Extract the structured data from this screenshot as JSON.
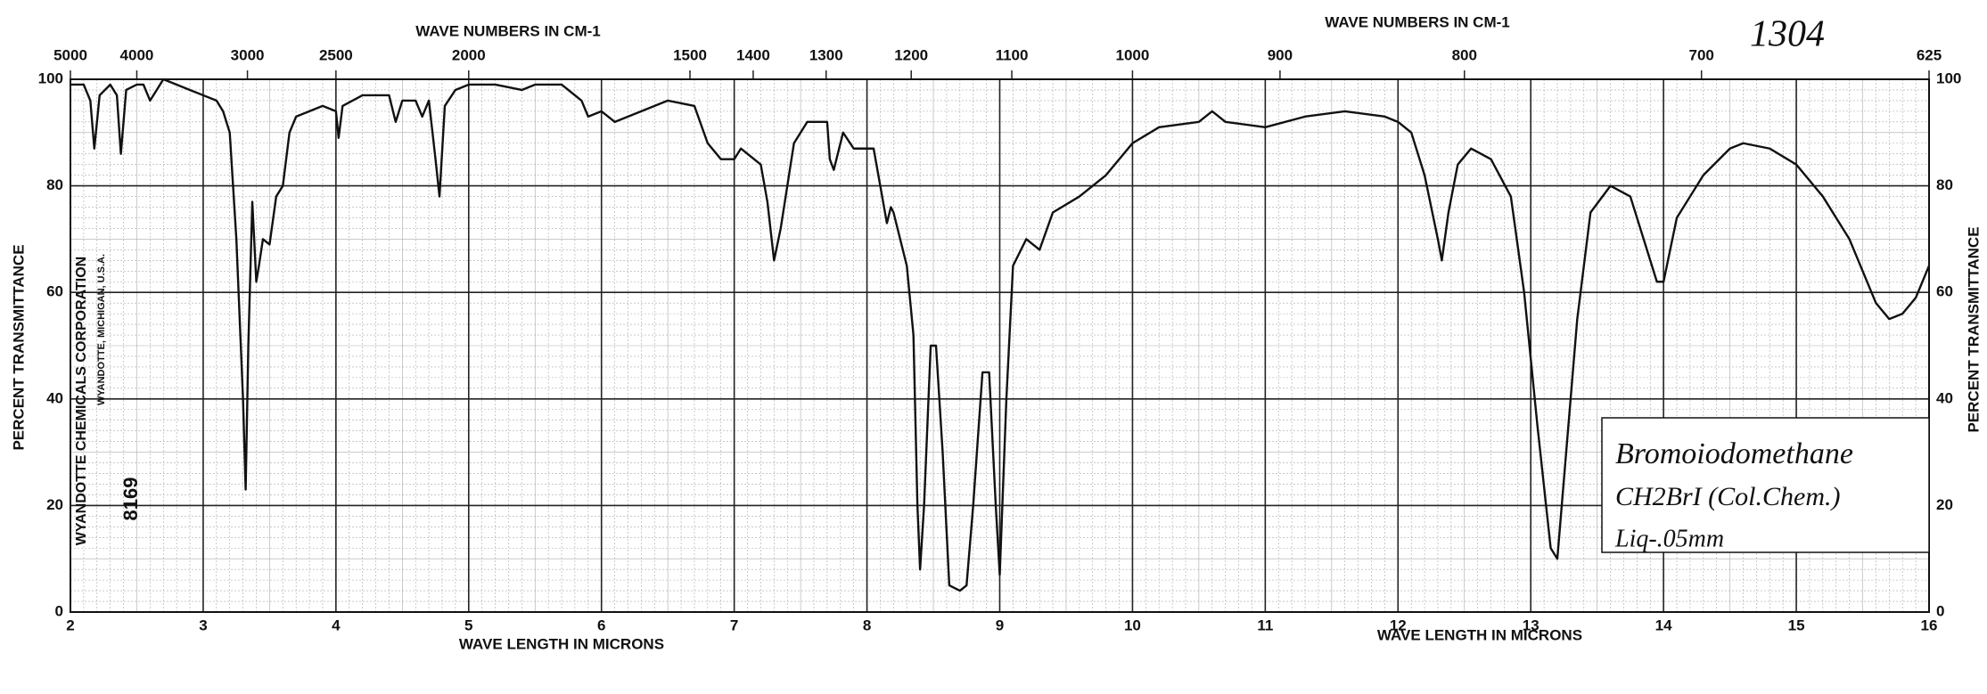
{
  "chart_data": {
    "type": "line",
    "top_label": "1304",
    "x_label": "WAVE LENGTH IN MICRONS",
    "x2_label": "WAVE NUMBERS IN CM-1",
    "y_label": "PERCENT TRANSMITTANCE",
    "annotations": [
      "Bromoiodomethane",
      "CH2BrI (Col.Chem.)",
      "Liq-.05mm",
      "WYANDOTTE CHEMICALS CORPORATION",
      "WYANDOTTE, MICHIGAN, U.S.A.",
      "8169"
    ],
    "xlim": [
      2,
      16
    ],
    "ylim": [
      0,
      100
    ],
    "xticks": [
      2,
      3,
      4,
      5,
      6,
      7,
      8,
      9,
      10,
      11,
      12,
      13,
      14,
      15,
      16
    ],
    "yticks": [
      0,
      20,
      40,
      60,
      80,
      100
    ],
    "x2ticks": [
      5000,
      4000,
      3000,
      2500,
      2000,
      1500,
      1400,
      1300,
      1200,
      1100,
      1000,
      900,
      800,
      700,
      625
    ],
    "grid": true,
    "series": [
      {
        "name": "Bromoiodomethane",
        "color": "#111111",
        "x": [
          2.0,
          2.1,
          2.15,
          2.18,
          2.22,
          2.3,
          2.35,
          2.38,
          2.42,
          2.5,
          2.55,
          2.6,
          2.65,
          2.7,
          2.8,
          2.9,
          3.0,
          3.1,
          3.15,
          3.2,
          3.25,
          3.3,
          3.32,
          3.34,
          3.37,
          3.4,
          3.42,
          3.45,
          3.5,
          3.55,
          3.6,
          3.65,
          3.7,
          3.8,
          3.9,
          4.0,
          4.02,
          4.05,
          4.2,
          4.4,
          4.45,
          4.5,
          4.6,
          4.65,
          4.7,
          4.75,
          4.78,
          4.82,
          4.9,
          5.0,
          5.2,
          5.4,
          5.5,
          5.7,
          5.85,
          5.9,
          6.0,
          6.1,
          6.3,
          6.5,
          6.7,
          6.8,
          6.9,
          7.0,
          7.05,
          7.2,
          7.25,
          7.3,
          7.35,
          7.45,
          7.55,
          7.7,
          7.72,
          7.75,
          7.82,
          7.9,
          8.05,
          8.1,
          8.15,
          8.18,
          8.2,
          8.3,
          8.35,
          8.38,
          8.4,
          8.43,
          8.48,
          8.52,
          8.57,
          8.62,
          8.7,
          8.75,
          8.8,
          8.87,
          8.92,
          8.97,
          9.0,
          9.05,
          9.1,
          9.2,
          9.3,
          9.4,
          9.6,
          9.8,
          10.0,
          10.2,
          10.5,
          10.6,
          10.7,
          11.0,
          11.3,
          11.6,
          11.9,
          12.0,
          12.1,
          12.2,
          12.3,
          12.33,
          12.38,
          12.45,
          12.55,
          12.7,
          12.85,
          12.95,
          13.05,
          13.15,
          13.2,
          13.25,
          13.35,
          13.45,
          13.6,
          13.75,
          13.85,
          13.95,
          14.0,
          14.1,
          14.3,
          14.5,
          14.6,
          14.8,
          15.0,
          15.2,
          15.4,
          15.6,
          15.7,
          15.8,
          15.9,
          16.0
        ],
        "values": [
          99,
          99,
          96,
          87,
          97,
          99,
          97,
          86,
          98,
          99,
          99,
          96,
          98,
          100,
          99,
          98,
          97,
          96,
          94,
          90,
          70,
          40,
          23,
          50,
          77,
          62,
          65,
          70,
          69,
          78,
          80,
          90,
          93,
          94,
          95,
          94,
          89,
          95,
          97,
          97,
          92,
          96,
          96,
          93,
          96,
          85,
          78,
          95,
          98,
          99,
          99,
          98,
          99,
          99,
          96,
          93,
          94,
          92,
          94,
          96,
          95,
          88,
          85,
          85,
          87,
          84,
          77,
          66,
          72,
          88,
          92,
          92,
          85,
          83,
          90,
          87,
          87,
          80,
          73,
          76,
          75,
          65,
          52,
          20,
          8,
          20,
          50,
          50,
          30,
          5,
          4,
          5,
          20,
          45,
          45,
          20,
          7,
          40,
          65,
          70,
          68,
          75,
          78,
          82,
          88,
          91,
          92,
          94,
          92,
          91,
          93,
          94,
          93,
          92,
          90,
          82,
          70,
          66,
          75,
          84,
          87,
          85,
          78,
          60,
          35,
          12,
          10,
          25,
          55,
          75,
          80,
          78,
          70,
          62,
          62,
          74,
          82,
          87,
          88,
          87,
          84,
          78,
          70,
          58,
          55,
          56,
          59,
          65
        ]
      }
    ]
  }
}
